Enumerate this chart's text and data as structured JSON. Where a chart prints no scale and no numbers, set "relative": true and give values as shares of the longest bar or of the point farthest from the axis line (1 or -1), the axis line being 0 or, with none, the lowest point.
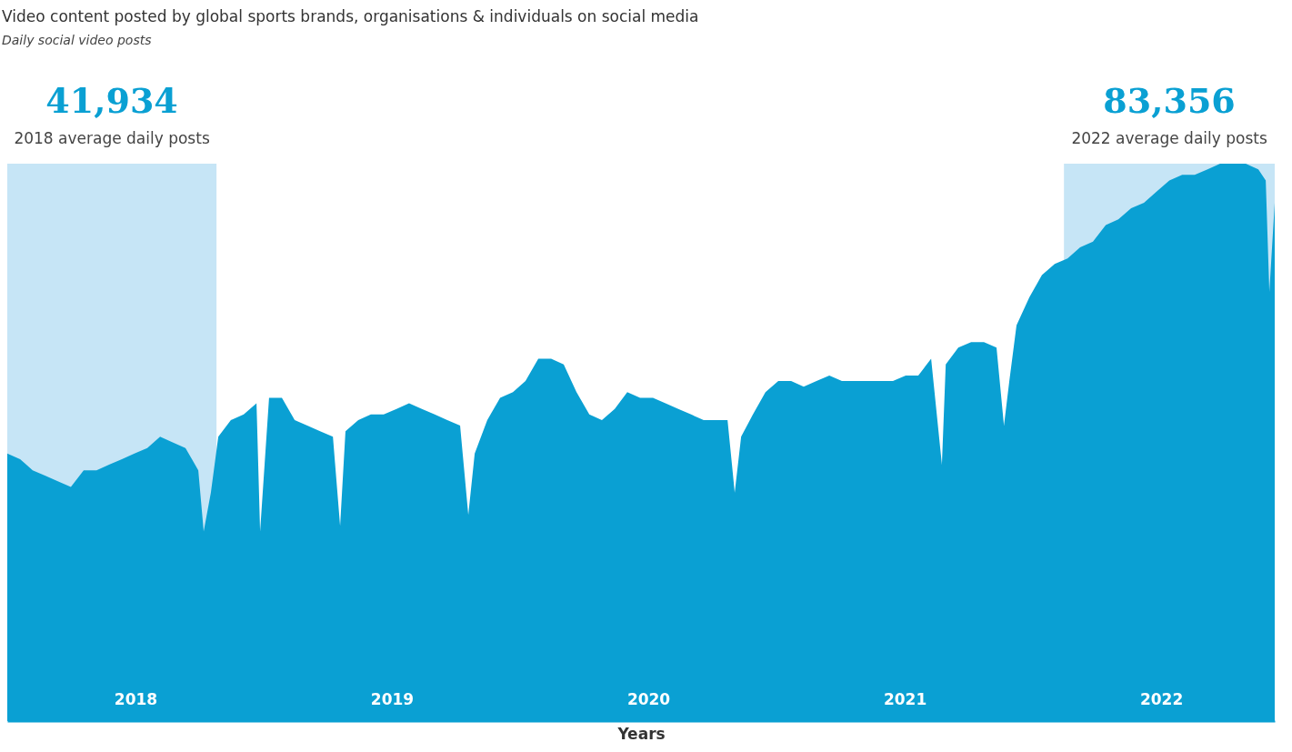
{
  "chart_data": {
    "type": "area",
    "title": "Video content posted by global sports brands, organisations & individuals on social media",
    "subtitle": "Daily social video posts",
    "xlabel": "Years",
    "relative": true,
    "xlim": [
      2018,
      2022.943
    ],
    "xticks": [
      {
        "value": 2018.5,
        "label": "2018"
      },
      {
        "value": 2019.5,
        "label": "2019"
      },
      {
        "value": 2020.5,
        "label": "2020"
      },
      {
        "value": 2021.5,
        "label": "2021"
      },
      {
        "value": 2022.5,
        "label": "2022"
      }
    ],
    "series": [
      {
        "color": "#0aa0d3",
        "x": [
          2018.0,
          2018.05,
          2018.099,
          2018.149,
          2018.199,
          2018.248,
          2018.298,
          2018.348,
          2018.397,
          2018.447,
          2018.496,
          2018.546,
          2018.596,
          2018.645,
          2018.695,
          2018.745,
          2018.766,
          2018.794,
          2018.823,
          2018.872,
          2018.922,
          2018.972,
          2018.986,
          2019.021,
          2019.071,
          2019.121,
          2019.17,
          2019.22,
          2019.27,
          2019.298,
          2019.319,
          2019.369,
          2019.418,
          2019.468,
          2019.518,
          2019.567,
          2019.617,
          2019.667,
          2019.716,
          2019.766,
          2019.798,
          2019.823,
          2019.872,
          2019.922,
          2019.972,
          2020.021,
          2020.071,
          2020.121,
          2020.17,
          2020.22,
          2020.27,
          2020.319,
          2020.369,
          2020.418,
          2020.468,
          2020.518,
          2020.567,
          2020.617,
          2020.667,
          2020.716,
          2020.766,
          2020.809,
          2020.837,
          2020.862,
          2020.908,
          2020.957,
          2021.007,
          2021.057,
          2021.106,
          2021.156,
          2021.206,
          2021.255,
          2021.305,
          2021.355,
          2021.404,
          2021.454,
          2021.504,
          2021.553,
          2021.603,
          2021.645,
          2021.66,
          2021.709,
          2021.759,
          2021.809,
          2021.858,
          2021.887,
          2021.908,
          2021.936,
          2021.986,
          2022.035,
          2022.085,
          2022.135,
          2022.184,
          2022.234,
          2022.284,
          2022.333,
          2022.383,
          2022.433,
          2022.482,
          2022.532,
          2022.582,
          2022.631,
          2022.681,
          2022.73,
          2022.78,
          2022.83,
          2022.879,
          2022.908,
          2022.922,
          2022.943
        ],
        "values": [
          0.48,
          0.47,
          0.45,
          0.44,
          0.43,
          0.42,
          0.45,
          0.45,
          0.46,
          0.47,
          0.48,
          0.49,
          0.51,
          0.5,
          0.49,
          0.45,
          0.34,
          0.41,
          0.51,
          0.54,
          0.55,
          0.57,
          0.34,
          0.58,
          0.58,
          0.54,
          0.53,
          0.52,
          0.51,
          0.35,
          0.52,
          0.54,
          0.55,
          0.55,
          0.56,
          0.57,
          0.56,
          0.55,
          0.54,
          0.53,
          0.37,
          0.48,
          0.54,
          0.58,
          0.59,
          0.61,
          0.65,
          0.65,
          0.64,
          0.59,
          0.55,
          0.54,
          0.56,
          0.59,
          0.58,
          0.58,
          0.57,
          0.56,
          0.55,
          0.54,
          0.54,
          0.54,
          0.41,
          0.51,
          0.55,
          0.59,
          0.61,
          0.61,
          0.6,
          0.61,
          0.62,
          0.61,
          0.61,
          0.61,
          0.61,
          0.61,
          0.62,
          0.62,
          0.65,
          0.46,
          0.64,
          0.67,
          0.68,
          0.68,
          0.67,
          0.53,
          0.61,
          0.71,
          0.76,
          0.8,
          0.82,
          0.83,
          0.85,
          0.86,
          0.89,
          0.9,
          0.92,
          0.93,
          0.95,
          0.97,
          0.98,
          0.98,
          0.99,
          1.0,
          1.0,
          1.0,
          0.99,
          0.97,
          0.77,
          0.93
        ]
      }
    ],
    "bands": [
      {
        "axis": "x",
        "from": 2018,
        "to": 2018.816,
        "label": "2018 average daily posts",
        "color": "#c6e5f6"
      },
      {
        "axis": "x",
        "from": 2022.121,
        "to": 2022.943,
        "label": "2022 average daily posts",
        "color": "#c6e5f6"
      }
    ],
    "annotations": [
      "41,934",
      "83,356"
    ]
  }
}
